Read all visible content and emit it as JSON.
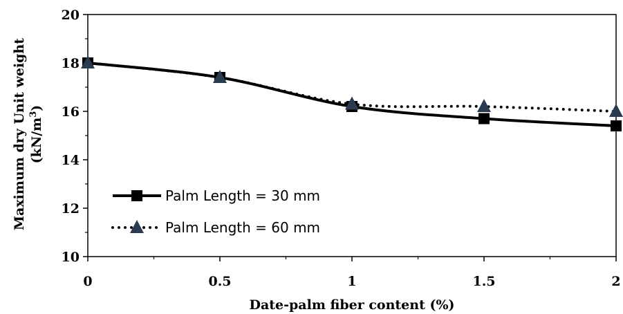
{
  "chart_data": {
    "type": "line",
    "x": [
      0,
      0.5,
      1,
      1.5,
      2
    ],
    "xlabel": "Date-palm fiber content (%)",
    "ylabel_line1": "Maximum dry Unit weight",
    "ylabel_line2_prefix": "(kN/m",
    "ylabel_line2_sup": "3",
    "ylabel_line2_suffix": ")",
    "xlim": [
      0,
      2
    ],
    "ylim": [
      10,
      20
    ],
    "x_ticks": [
      0,
      0.5,
      1,
      1.5,
      2
    ],
    "x_tick_labels": [
      "0",
      "0.5",
      "1",
      "1.5",
      "2"
    ],
    "y_ticks": [
      10,
      12,
      14,
      16,
      18,
      20
    ],
    "y_tick_labels": [
      "10",
      "12",
      "14",
      "16",
      "18",
      "20"
    ],
    "grid": false,
    "legend_position": "bottom-left",
    "series": [
      {
        "name": "Palm Length = 30 mm",
        "values": [
          18.0,
          17.4,
          16.2,
          15.7,
          15.4
        ],
        "color": "#000000",
        "line_style": "solid",
        "marker": "square"
      },
      {
        "name": "Palm Length = 60 mm",
        "values": [
          18.0,
          17.4,
          16.3,
          16.2,
          16.0
        ],
        "color": "#000000",
        "line_style": "dotted",
        "marker": "triangle",
        "marker_color": "#2a3a4f"
      }
    ]
  }
}
